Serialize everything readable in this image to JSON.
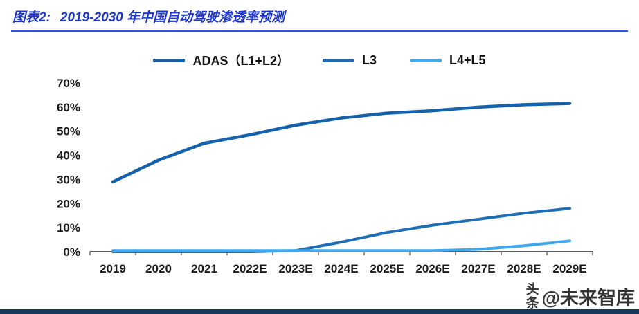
{
  "title": {
    "prefix": "图表2:",
    "text": "2019-2030 年中国自动驾驶渗透率预测"
  },
  "colors": {
    "title": "#1d36c9",
    "rule": "#2b55e0",
    "footer": "#17375e",
    "axis": "#262626",
    "tick_label": "#1a1a1a"
  },
  "watermark": {
    "vertical": "头条",
    "horizontal": "@未来智库"
  },
  "chart_data": {
    "type": "line",
    "title": "2019-2030 年中国自动驾驶渗透率预测",
    "categories": [
      "2019",
      "2020",
      "2021",
      "2022E",
      "2023E",
      "2024E",
      "2025E",
      "2026E",
      "2027E",
      "2028E",
      "2029E"
    ],
    "series": [
      {
        "name": "ADAS（L1+L2）",
        "color": "#1661ac",
        "values": [
          29,
          38,
          45,
          48.5,
          52.5,
          55.5,
          57.5,
          58.5,
          60,
          61,
          61.5
        ]
      },
      {
        "name": "L3",
        "color": "#1f6db5",
        "values": [
          0,
          0,
          0,
          0,
          0.5,
          4,
          8,
          11,
          13.5,
          16,
          18
        ]
      },
      {
        "name": "L4+L5",
        "color": "#3fa8ee",
        "values": [
          0.5,
          0.5,
          0.5,
          0.5,
          0.5,
          0.5,
          0.5,
          0.5,
          1,
          2.5,
          4.5
        ]
      }
    ],
    "xlabel": "",
    "ylabel": "",
    "ylim": [
      0,
      70
    ],
    "ytick_step": 10,
    "ytick_suffix": "%",
    "legend_position": "top",
    "grid": false
  }
}
